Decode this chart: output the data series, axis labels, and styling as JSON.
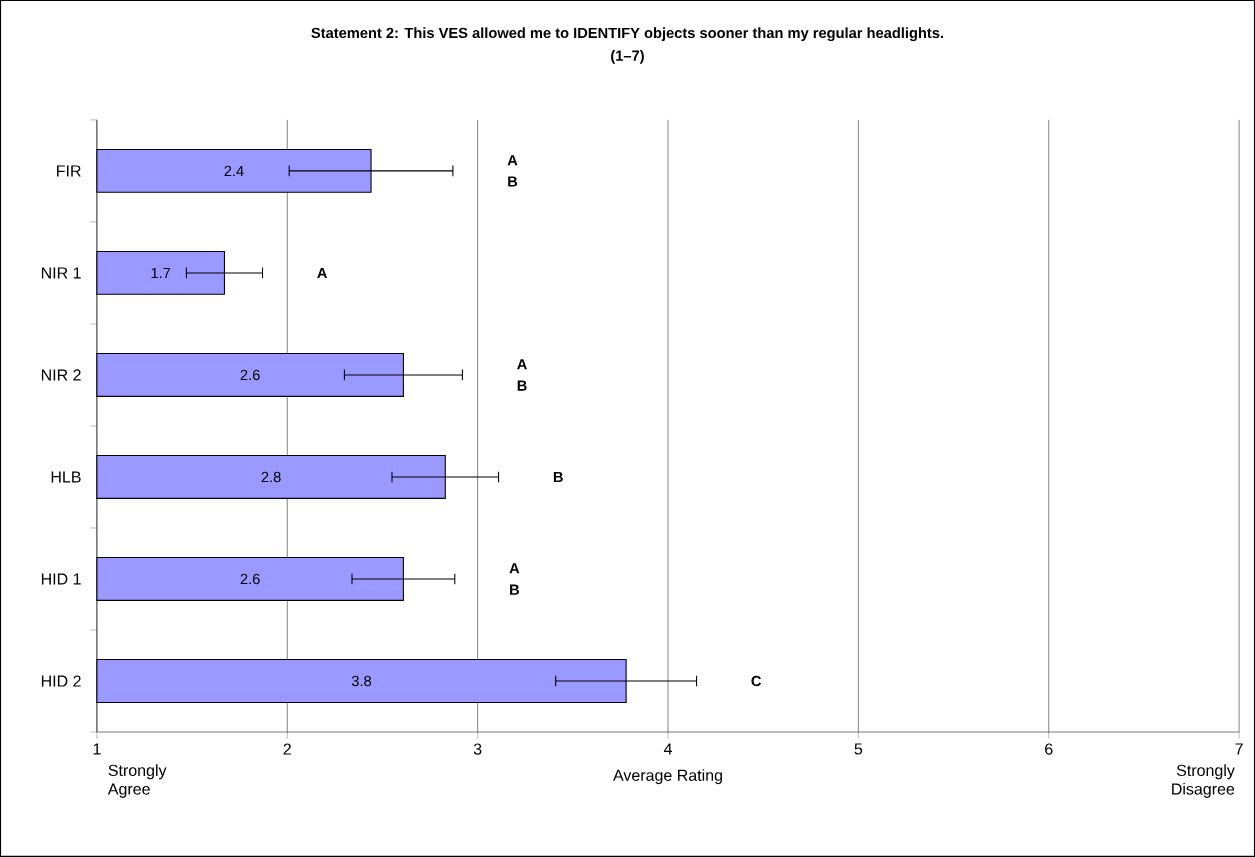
{
  "chart_data": {
    "type": "bar",
    "orientation": "horizontal",
    "title": "Statement 2: This VES allowed me to IDENTIFY objects sooner than my regular headlights.",
    "subtitle": "(1–7)",
    "xlabel": "Average Rating",
    "categories": [
      "FIR",
      "NIR 1",
      "NIR 2",
      "HLB",
      "HID 1",
      "HID 2"
    ],
    "values": [
      2.44,
      1.67,
      2.61,
      2.83,
      2.61,
      3.78
    ],
    "value_labels": [
      "2.4",
      "1.7",
      "2.6",
      "2.8",
      "2.6",
      "3.8"
    ],
    "errors": [
      0.43,
      0.2,
      0.31,
      0.28,
      0.27,
      0.37
    ],
    "color": "#9999ff",
    "xlim": [
      1,
      7
    ],
    "xticks": [
      1,
      2,
      3,
      4,
      5,
      6,
      7
    ],
    "grid": "x",
    "annotations": [
      "Strongly Agree",
      "A B",
      "A",
      "A B",
      "B",
      "A B",
      "C",
      "Strongly Disagree"
    ]
  }
}
